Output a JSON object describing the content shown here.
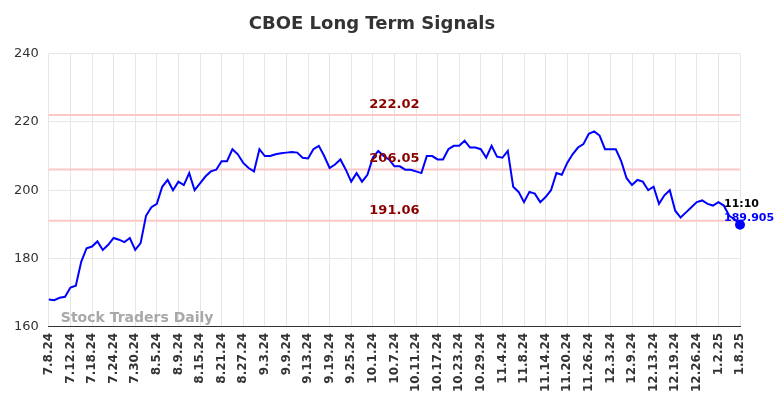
{
  "chart_data": {
    "type": "line",
    "title": "CBOE Long Term Signals",
    "categories": [
      "7.8.24",
      null,
      null,
      null,
      "7.12.24",
      null,
      null,
      null,
      "7.18.24",
      null,
      null,
      null,
      "7.24.24",
      null,
      null,
      null,
      "7.30.24",
      null,
      null,
      null,
      "8.5.24",
      null,
      null,
      null,
      "8.9.24",
      null,
      null,
      null,
      "8.15.24",
      null,
      null,
      null,
      "8.21.24",
      null,
      null,
      null,
      "8.27.24",
      null,
      null,
      null,
      "9.3.24",
      null,
      null,
      null,
      "9.9.24",
      null,
      null,
      null,
      "9.13.24",
      null,
      null,
      null,
      "9.19.24",
      null,
      null,
      null,
      "9.25.24",
      null,
      null,
      null,
      "10.1.24",
      null,
      null,
      null,
      "10.7.24",
      null,
      null,
      null,
      "10.11.24",
      null,
      null,
      null,
      "10.17.24",
      null,
      null,
      null,
      "10.23.24",
      null,
      null,
      null,
      "10.29.24",
      null,
      null,
      null,
      "11.4.24",
      null,
      null,
      null,
      "11.8.24",
      null,
      null,
      null,
      "11.14.24",
      null,
      null,
      null,
      "11.20.24",
      null,
      null,
      null,
      "11.26.24",
      null,
      null,
      null,
      "12.3.24",
      null,
      null,
      null,
      "12.9.24",
      null,
      null,
      null,
      "12.13.24",
      null,
      null,
      null,
      "12.19.24",
      null,
      null,
      null,
      "12.26.24",
      null,
      null,
      null,
      "1.2.25",
      null,
      null,
      null,
      "1.8.25"
    ],
    "values": [
      168,
      167.8,
      168.5,
      168.8,
      171.5,
      172,
      179,
      183,
      183.5,
      185,
      182.5,
      184,
      186,
      185.5,
      184.8,
      186,
      182.5,
      184.5,
      192.5,
      195,
      196,
      201,
      203,
      200,
      202.5,
      201.5,
      205,
      200,
      202,
      204,
      205.5,
      206,
      208.5,
      208.5,
      212,
      210.5,
      208,
      206.5,
      205.5,
      212,
      210,
      210,
      210.5,
      210.8,
      211,
      211.2,
      211,
      209.5,
      209.3,
      212,
      213,
      210,
      206.5,
      207.5,
      209,
      206,
      202.5,
      205,
      202.5,
      204.5,
      209.5,
      211.5,
      210,
      209,
      207,
      207,
      206,
      206,
      205.5,
      205,
      210,
      210,
      209,
      209,
      212,
      213,
      213,
      214.5,
      212.5,
      212.5,
      212,
      209.5,
      213,
      209.8,
      209.5,
      211.5,
      201,
      199.5,
      196.5,
      199.5,
      199,
      196.5,
      198,
      200,
      205,
      204.5,
      208,
      210.5,
      212.5,
      213.5,
      216.5,
      217.2,
      216,
      212,
      212,
      212,
      208.5,
      203.5,
      201.5,
      203,
      202.5,
      200,
      201,
      196,
      198.5,
      200,
      194,
      192,
      193.5,
      195,
      196.5,
      197,
      196,
      195.5,
      196.5,
      195.5,
      192.5,
      191.5,
      189.905
    ],
    "color": "#0000ff",
    "ylim": [
      160,
      240
    ],
    "yticks": [
      160,
      180,
      200,
      220,
      240
    ],
    "grid": true,
    "signal_lines": [
      222.02,
      206.05,
      191.06
    ],
    "last_point_label": {
      "time": "11:10",
      "value": 189.905
    },
    "watermark": "Stock Traders Daily"
  }
}
